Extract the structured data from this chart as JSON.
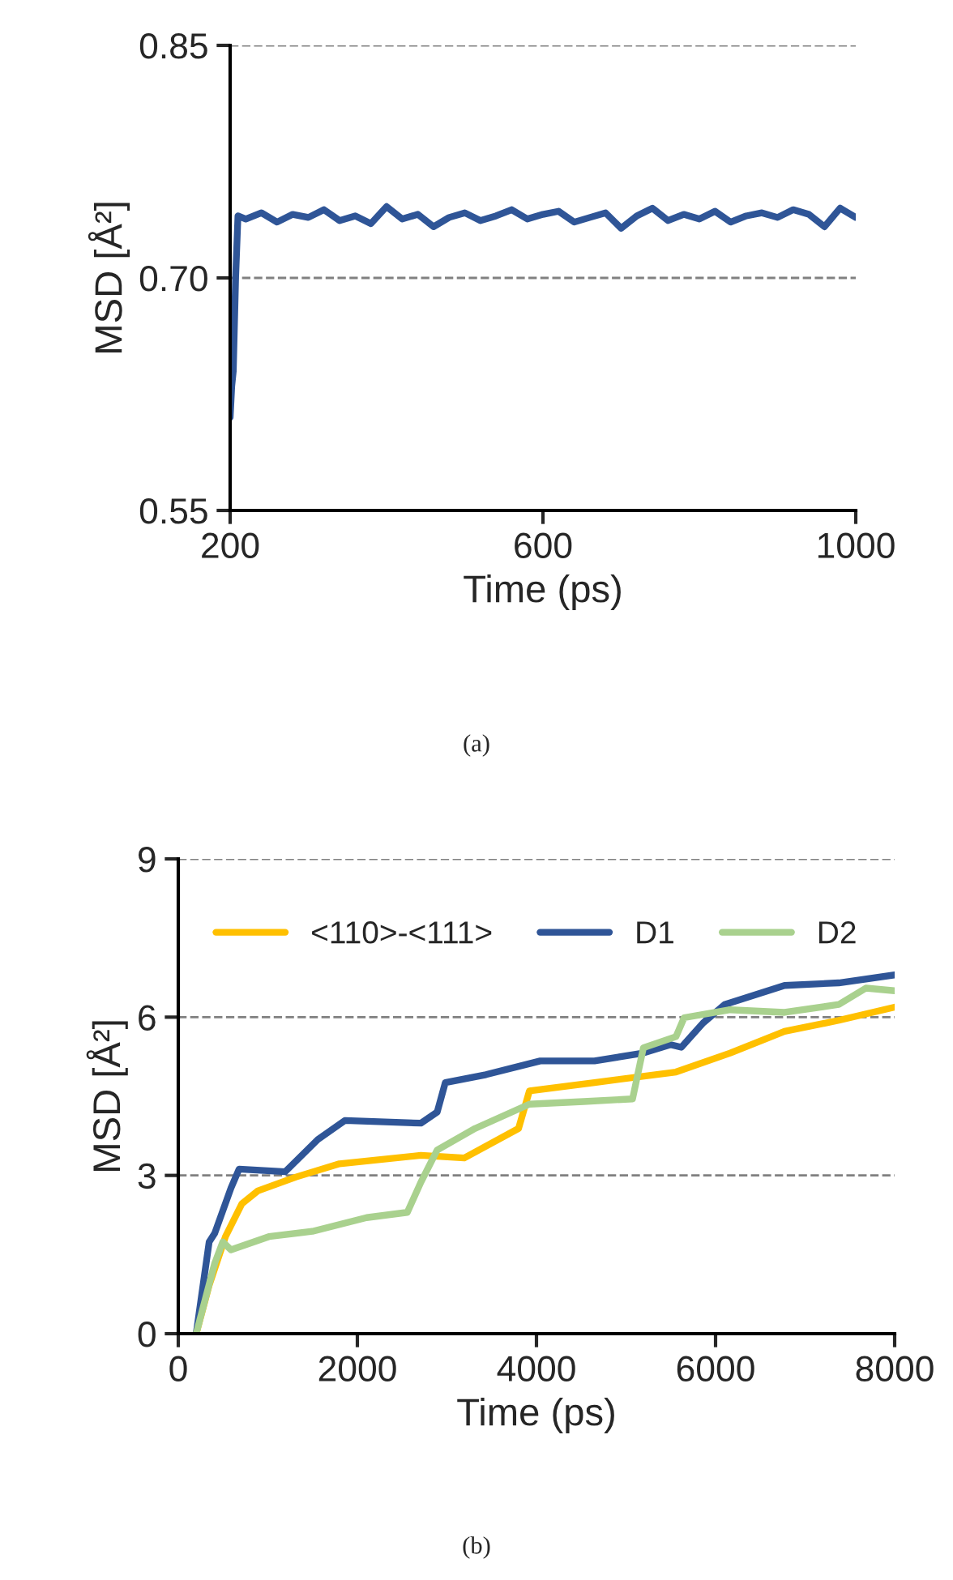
{
  "chart_data": [
    {
      "type": "line",
      "xlabel": "Time (ps)",
      "ylabel": "MSD [Å²]",
      "xlim": [
        200,
        1000
      ],
      "xticks": [
        200,
        600,
        1000
      ],
      "ylim": [
        0.55,
        0.85
      ],
      "yticks": [
        0.55,
        {
          "value": 0.7,
          "label": "0.70"
        },
        0.85
      ],
      "grid": "y",
      "legend": false,
      "line_style": "solid",
      "annotations": [
        "(a)"
      ],
      "series": [
        {
          "color": "#2f5597",
          "x": [
            200,
            202,
            204,
            207,
            210,
            220,
            240,
            260,
            280,
            300,
            320,
            340,
            360,
            380,
            400,
            420,
            440,
            460,
            480,
            500,
            520,
            540,
            560,
            580,
            600,
            620,
            640,
            660,
            680,
            700,
            720,
            740,
            760,
            780,
            800,
            820,
            840,
            860,
            880,
            900,
            920,
            940,
            960,
            980,
            1000
          ],
          "values": [
            0.61,
            0.63,
            0.64,
            0.7,
            0.74,
            0.738,
            0.742,
            0.736,
            0.741,
            0.739,
            0.744,
            0.737,
            0.74,
            0.735,
            0.746,
            0.738,
            0.741,
            0.733,
            0.739,
            0.742,
            0.737,
            0.74,
            0.744,
            0.738,
            0.741,
            0.743,
            0.736,
            0.739,
            0.742,
            0.732,
            0.74,
            0.745,
            0.737,
            0.741,
            0.738,
            0.743,
            0.736,
            0.74,
            0.742,
            0.739,
            0.744,
            0.741,
            0.733,
            0.745,
            0.739
          ]
        }
      ]
    },
    {
      "type": "line",
      "xlabel": "Time (ps)",
      "ylabel": "MSD [Å²]",
      "xlim": [
        0,
        8000
      ],
      "xticks": [
        0,
        2000,
        4000,
        6000,
        8000
      ],
      "ylim": [
        0,
        9
      ],
      "yticks": [
        0,
        3,
        6,
        9
      ],
      "grid": "y",
      "legend": "top",
      "line_style": "solid",
      "annotations": [
        "(b)"
      ],
      "series": [
        {
          "name": "<110>-<111>",
          "color": "#ffc000",
          "x": [
            200,
            345,
            527,
            709,
            891,
            1315,
            1800,
            2709,
            3194,
            3800,
            3921,
            4648,
            5558,
            6164,
            6770,
            7376,
            8000
          ],
          "values": [
            0,
            0.92,
            1.84,
            2.46,
            2.71,
            2.97,
            3.22,
            3.38,
            3.33,
            3.89,
            4.6,
            4.76,
            4.96,
            5.32,
            5.73,
            5.94,
            6.19
          ]
        },
        {
          "name": "D1",
          "color": "#2f5597",
          "x": [
            200,
            345,
            406,
            588,
            679,
            1194,
            1558,
            1861,
            2709,
            2891,
            2982,
            3436,
            4042,
            4648,
            5194,
            5497,
            5618,
            5861,
            6103,
            6770,
            7376,
            8000
          ],
          "values": [
            0,
            1.74,
            1.9,
            2.76,
            3.12,
            3.07,
            3.68,
            4.04,
            3.99,
            4.2,
            4.76,
            4.91,
            5.17,
            5.17,
            5.32,
            5.48,
            5.43,
            5.89,
            6.24,
            6.6,
            6.65,
            6.8
          ]
        },
        {
          "name": "D2",
          "color": "#a9d18e",
          "x": [
            200,
            406,
            497,
            588,
            1012,
            1497,
            2103,
            2558,
            2709,
            2891,
            3315,
            3921,
            4527,
            5073,
            5194,
            5558,
            5649,
            6164,
            6770,
            7376,
            7679,
            8000
          ],
          "values": [
            0,
            1.33,
            1.74,
            1.59,
            1.84,
            1.94,
            2.2,
            2.3,
            2.87,
            3.48,
            3.89,
            4.35,
            4.4,
            4.45,
            5.42,
            5.63,
            5.99,
            6.14,
            6.09,
            6.24,
            6.55,
            6.5
          ]
        }
      ]
    }
  ]
}
